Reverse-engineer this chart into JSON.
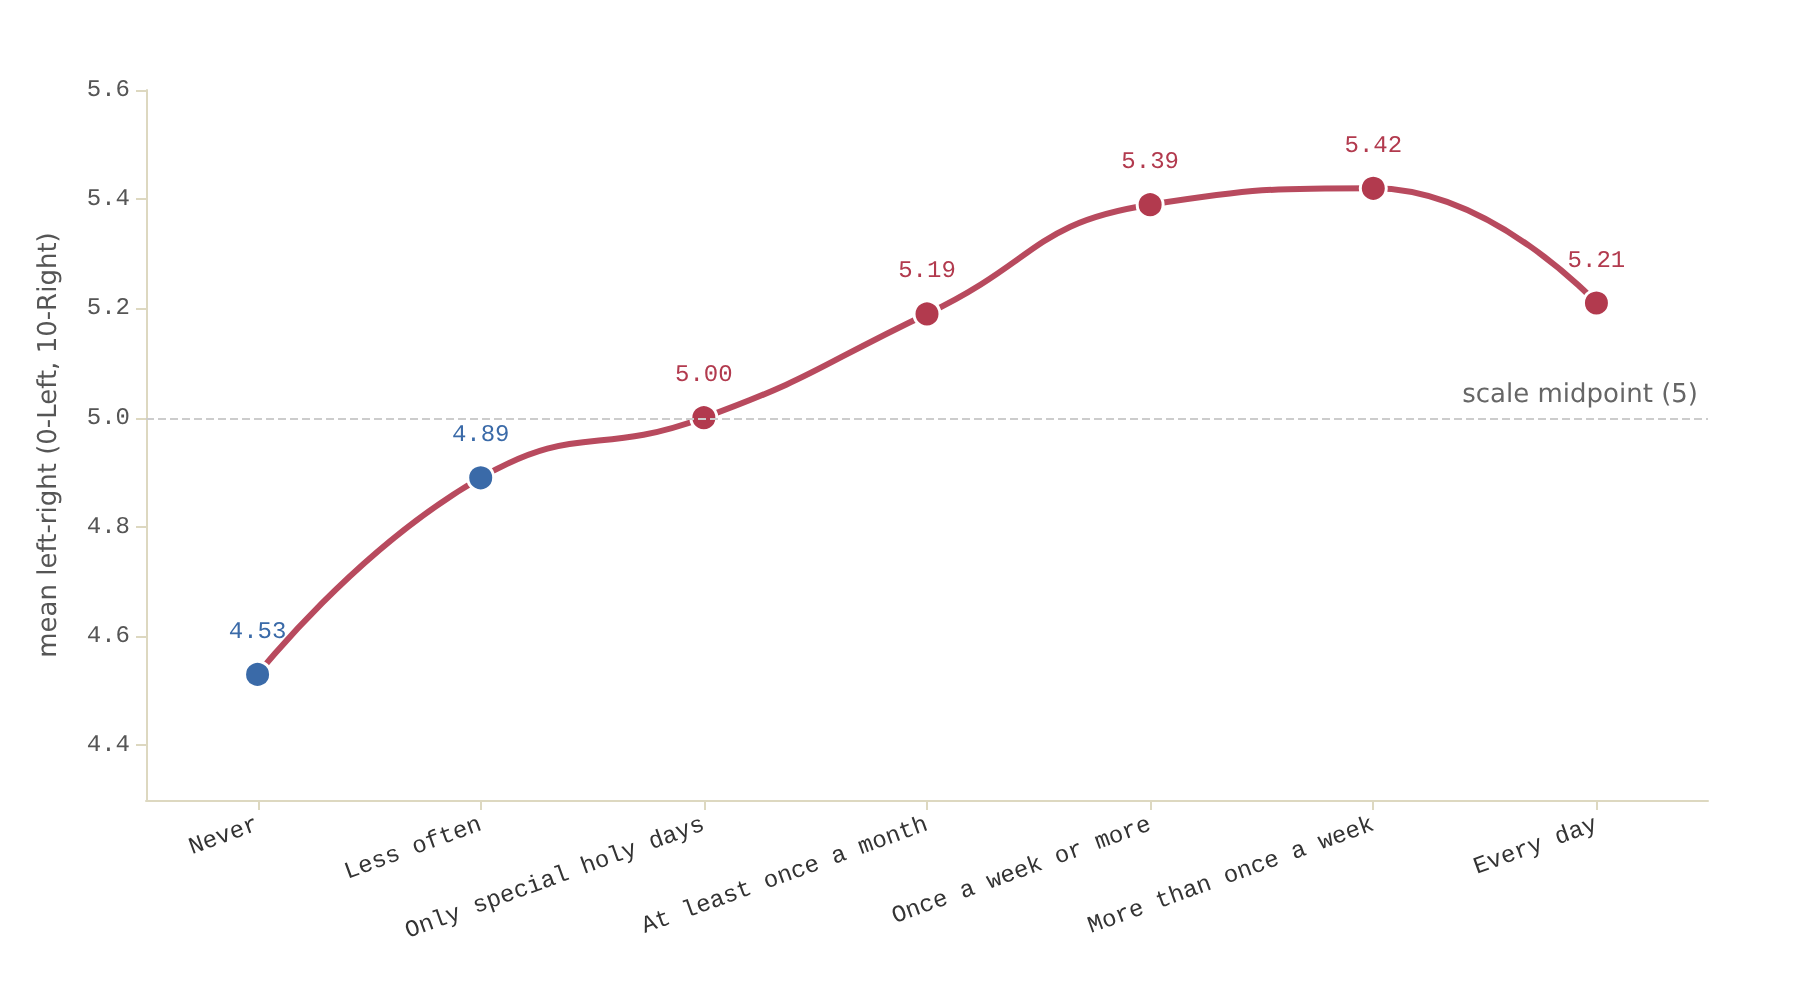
{
  "chart_data": {
    "type": "line",
    "ylabel": "mean left-right (0-Left, 10-Right)",
    "categories": [
      "Never",
      "Less often",
      "Only special holy days",
      "At least once a month",
      "Once a week or more",
      "More than once a week",
      "Every day"
    ],
    "series": [
      {
        "color": "#b84a5e",
        "values": [
          4.53,
          4.89,
          5.0,
          5.19,
          5.39,
          5.42,
          5.21
        ],
        "value_labels": [
          "4.53",
          "4.89",
          "5.00",
          "5.19",
          "5.39",
          "5.42",
          "5.21"
        ],
        "colors": [
          "#3a6aa8",
          "#3a6aa8",
          "#b23a4e",
          "#b23a4e",
          "#b23a4e",
          "#b23a4e",
          "#b23a4e"
        ]
      }
    ],
    "ylim": [
      4.3,
      5.6
    ],
    "yticks": [
      4.4,
      4.6,
      4.8,
      {
        "value": 5,
        "label": "5.0"
      },
      5.2,
      5.4,
      5.6
    ],
    "ref_lines": [
      {
        "axis": "y",
        "value": 5,
        "label": "scale midpoint (5)",
        "color": "#cccccc",
        "line_style": "dashed"
      }
    ],
    "marker": "circle",
    "line_style": "solid",
    "grid": false
  }
}
